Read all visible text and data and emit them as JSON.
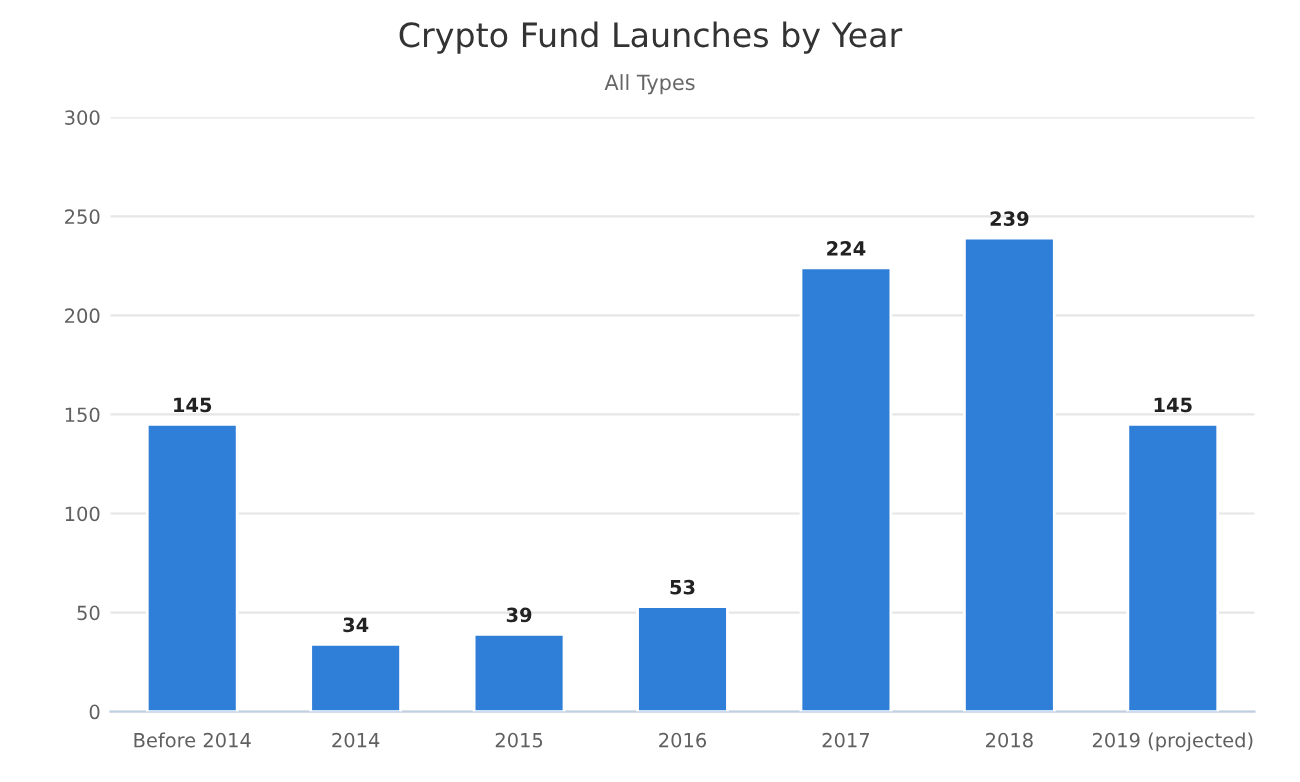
{
  "chart_data": {
    "type": "bar",
    "title": "Crypto Fund Launches by Year",
    "subtitle": "All Types",
    "categories": [
      "Before 2014",
      "2014",
      "2015",
      "2016",
      "2017",
      "2018",
      "2019 (projected)"
    ],
    "values": [
      145,
      34,
      39,
      53,
      224,
      239,
      145
    ],
    "color": "#2f7ed8",
    "ylim": [
      0,
      300
    ],
    "yticks": [
      0,
      50,
      100,
      150,
      200,
      250,
      300
    ],
    "grid": "y",
    "data_labels": true
  }
}
